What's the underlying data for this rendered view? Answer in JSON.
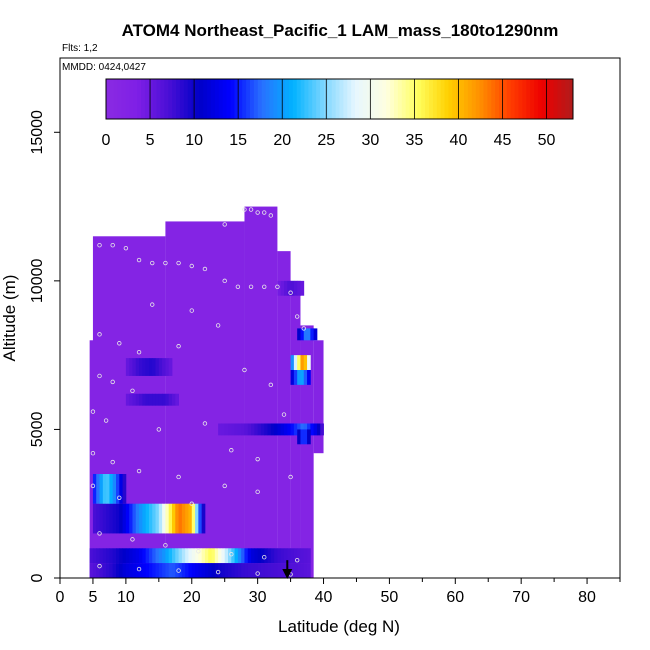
{
  "chart_data": {
    "type": "heatmap",
    "title": "ATOM4 Northeast_Pacific_1 LAM_mass_180to1290nm",
    "flights_label": "Flts: 1,2",
    "dates_label": "MMDD: 0424,0427",
    "xlabel": "Latitude (deg N)",
    "ylabel": "Altitude (m)",
    "xlim": [
      0,
      85
    ],
    "ylim": [
      0,
      17500
    ],
    "xticks": [
      0,
      5,
      10,
      20,
      30,
      40,
      50,
      60,
      70,
      80
    ],
    "yticks": [
      0,
      5000,
      10000,
      15000
    ],
    "colorbar": {
      "min": 0,
      "max": 53,
      "ticks": [
        0,
        5,
        10,
        15,
        20,
        25,
        30,
        35,
        40,
        45,
        50
      ],
      "palette": [
        "#8a2be2",
        "#7f1fe6",
        "#4b0fd6",
        "#0000c8",
        "#0000ff",
        "#2a70ff",
        "#00b2ff",
        "#7dd6ff",
        "#e6f6ff",
        "#ffffe0",
        "#ffff60",
        "#ffd000",
        "#ff9000",
        "#ff3c00",
        "#ee0000",
        "#b01c1c"
      ]
    },
    "background_value": 2,
    "regions": [
      {
        "lat": [
          4.5,
          5.5
        ],
        "alt": [
          0,
          8000
        ],
        "value": 2
      },
      {
        "lat": [
          5,
          16
        ],
        "alt": [
          0,
          11500
        ],
        "value": 2
      },
      {
        "lat": [
          16,
          28
        ],
        "alt": [
          0,
          12000
        ],
        "value": 2
      },
      {
        "lat": [
          28,
          33
        ],
        "alt": [
          0,
          12500
        ],
        "value": 2
      },
      {
        "lat": [
          33,
          35
        ],
        "alt": [
          0,
          11000
        ],
        "value": 2
      },
      {
        "lat": [
          35,
          36.5
        ],
        "alt": [
          0,
          10000
        ],
        "value": 2
      },
      {
        "lat": [
          36.5,
          38.5
        ],
        "alt": [
          0,
          8500
        ],
        "value": 2
      },
      {
        "lat": [
          38.5,
          40
        ],
        "alt": [
          4200,
          8000
        ],
        "value": 2
      }
    ],
    "bands": [
      {
        "lat": [
          4.5,
          38
        ],
        "alt": [
          500,
          1000
        ],
        "profile": [
          [
            4.5,
            7
          ],
          [
            8,
            9
          ],
          [
            12,
            13
          ],
          [
            16,
            20
          ],
          [
            19,
            27
          ],
          [
            23,
            36
          ],
          [
            26,
            24
          ],
          [
            29,
            12
          ],
          [
            33,
            8
          ],
          [
            38,
            6
          ]
        ]
      },
      {
        "lat": [
          4.5,
          38
        ],
        "alt": [
          0,
          500
        ],
        "profile": [
          [
            4.5,
            6
          ],
          [
            8,
            9
          ],
          [
            10,
            12
          ],
          [
            13,
            14
          ],
          [
            17,
            17
          ],
          [
            20,
            14
          ],
          [
            24,
            10
          ],
          [
            28,
            8
          ],
          [
            34,
            7
          ],
          [
            38,
            6
          ]
        ]
      },
      {
        "lat": [
          5,
          22
        ],
        "alt": [
          1500,
          2500
        ],
        "profile": [
          [
            5,
            7
          ],
          [
            9,
            10
          ],
          [
            12,
            19
          ],
          [
            15,
            25
          ],
          [
            18,
            44
          ],
          [
            20,
            40
          ],
          [
            21,
            20
          ],
          [
            22,
            6
          ]
        ]
      },
      {
        "lat": [
          5,
          10
        ],
        "alt": [
          2500,
          3500
        ],
        "profile": [
          [
            5,
            14
          ],
          [
            7,
            24
          ],
          [
            8.5,
            18
          ],
          [
            10,
            7
          ]
        ]
      },
      {
        "lat": [
          10,
          17
        ],
        "alt": [
          6800,
          7400
        ],
        "profile": [
          [
            10,
            5
          ],
          [
            12,
            8
          ],
          [
            14,
            9
          ],
          [
            17,
            5
          ]
        ]
      },
      {
        "lat": [
          10,
          18
        ],
        "alt": [
          5800,
          6200
        ],
        "profile": [
          [
            10,
            5
          ],
          [
            13,
            8
          ],
          [
            16,
            8
          ],
          [
            18,
            5
          ]
        ]
      },
      {
        "lat": [
          24,
          40
        ],
        "alt": [
          4800,
          5200
        ],
        "profile": [
          [
            24,
            5
          ],
          [
            28,
            6
          ],
          [
            32,
            10
          ],
          [
            35,
            14
          ],
          [
            37,
            18
          ],
          [
            39,
            12
          ],
          [
            40,
            6
          ]
        ]
      },
      {
        "lat": [
          35,
          38
        ],
        "alt": [
          7000,
          7500
        ],
        "profile": [
          [
            35,
            15
          ],
          [
            36,
            32
          ],
          [
            37,
            45
          ],
          [
            38,
            24
          ]
        ]
      },
      {
        "lat": [
          35,
          38
        ],
        "alt": [
          6500,
          7000
        ],
        "profile": [
          [
            35,
            10
          ],
          [
            36.5,
            22
          ],
          [
            38,
            12
          ]
        ]
      },
      {
        "lat": [
          36,
          39
        ],
        "alt": [
          8000,
          8400
        ],
        "profile": [
          [
            36,
            9
          ],
          [
            37.5,
            20
          ],
          [
            39,
            10
          ]
        ]
      },
      {
        "lat": [
          36,
          38
        ],
        "alt": [
          4500,
          5000
        ],
        "profile": [
          [
            36,
            8
          ],
          [
            37,
            18
          ],
          [
            38,
            8
          ]
        ]
      },
      {
        "lat": [
          33,
          37
        ],
        "alt": [
          9500,
          10000
        ],
        "profile": [
          [
            33,
            4
          ],
          [
            35,
            7
          ],
          [
            37,
            5
          ]
        ]
      }
    ],
    "points": [
      [
        6,
        11200
      ],
      [
        8,
        11200
      ],
      [
        10,
        11100
      ],
      [
        12,
        10700
      ],
      [
        14,
        10600
      ],
      [
        16,
        10600
      ],
      [
        18,
        10600
      ],
      [
        20,
        10500
      ],
      [
        22,
        10400
      ],
      [
        25,
        10000
      ],
      [
        27,
        9800
      ],
      [
        29,
        9800
      ],
      [
        31,
        9800
      ],
      [
        33,
        9800
      ],
      [
        35,
        9600
      ],
      [
        36,
        8800
      ],
      [
        37,
        8400
      ],
      [
        28,
        12400
      ],
      [
        29,
        12400
      ],
      [
        30,
        12300
      ],
      [
        31,
        12300
      ],
      [
        32,
        12200
      ],
      [
        25,
        11900
      ],
      [
        6,
        8200
      ],
      [
        9,
        7900
      ],
      [
        12,
        7600
      ],
      [
        6,
        6800
      ],
      [
        8,
        6600
      ],
      [
        11,
        6300
      ],
      [
        5,
        5600
      ],
      [
        7,
        5300
      ],
      [
        15,
        5000
      ],
      [
        5,
        4200
      ],
      [
        8,
        3900
      ],
      [
        12,
        3600
      ],
      [
        18,
        3400
      ],
      [
        25,
        3100
      ],
      [
        30,
        2900
      ],
      [
        5,
        3100
      ],
      [
        9,
        2700
      ],
      [
        20,
        2500
      ],
      [
        6,
        1500
      ],
      [
        11,
        1300
      ],
      [
        16,
        1100
      ],
      [
        21,
        900
      ],
      [
        26,
        800
      ],
      [
        31,
        700
      ],
      [
        36,
        600
      ],
      [
        6,
        400
      ],
      [
        12,
        300
      ],
      [
        18,
        250
      ],
      [
        24,
        200
      ],
      [
        30,
        150
      ],
      [
        35,
        120
      ],
      [
        20,
        9000
      ],
      [
        24,
        8500
      ],
      [
        28,
        7000
      ],
      [
        32,
        6500
      ],
      [
        34,
        5500
      ],
      [
        22,
        5200
      ],
      [
        26,
        4300
      ],
      [
        30,
        4000
      ],
      [
        35,
        3400
      ],
      [
        14,
        9200
      ],
      [
        18,
        7800
      ]
    ],
    "arrow": {
      "lat": 34.5,
      "alt_from": 600,
      "alt_to": 0
    }
  }
}
